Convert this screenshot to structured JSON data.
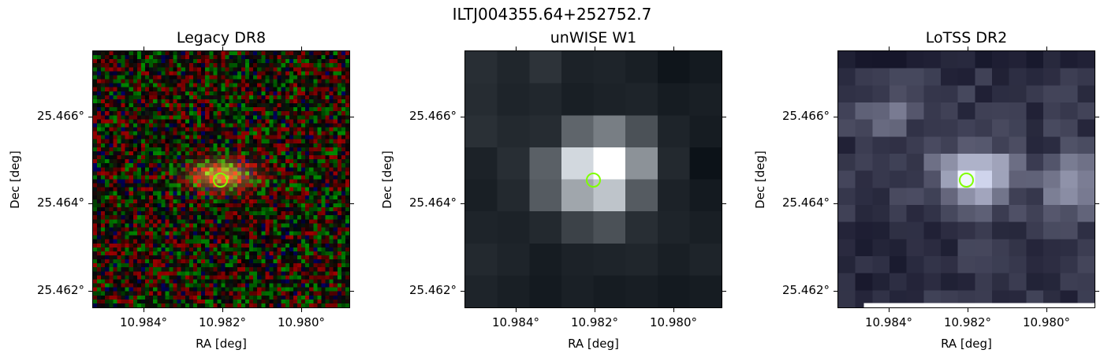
{
  "figure": {
    "suptitle": "ILTJ004355.64+252752.7",
    "marker_color": "#7fff00",
    "panels": [
      {
        "title": "Legacy DR8",
        "xlabel": "RA [deg]",
        "ylabel": "Dec [deg]",
        "xticks": [
          "10.984°",
          "10.982°",
          "10.980°"
        ],
        "yticks": [
          "25.466°",
          "25.464°",
          "25.462°"
        ],
        "image": "rgb-noise-with-orange-galaxy"
      },
      {
        "title": "unWISE W1",
        "xlabel": "RA [deg]",
        "ylabel": "Dec [deg]",
        "xticks": [
          "10.984°",
          "10.982°",
          "10.980°"
        ],
        "yticks": [
          "25.466°",
          "25.464°",
          "25.462°"
        ],
        "image": "gray-pixelated-bright-center"
      },
      {
        "title": "LoTSS DR2",
        "xlabel": "RA [deg]",
        "ylabel": "Dec [deg]",
        "xticks": [
          "10.984°",
          "10.982°",
          "10.980°"
        ],
        "yticks": [
          "25.466°",
          "25.464°",
          "25.462°"
        ],
        "image": "bone-pixelated-extended-source"
      }
    ]
  }
}
